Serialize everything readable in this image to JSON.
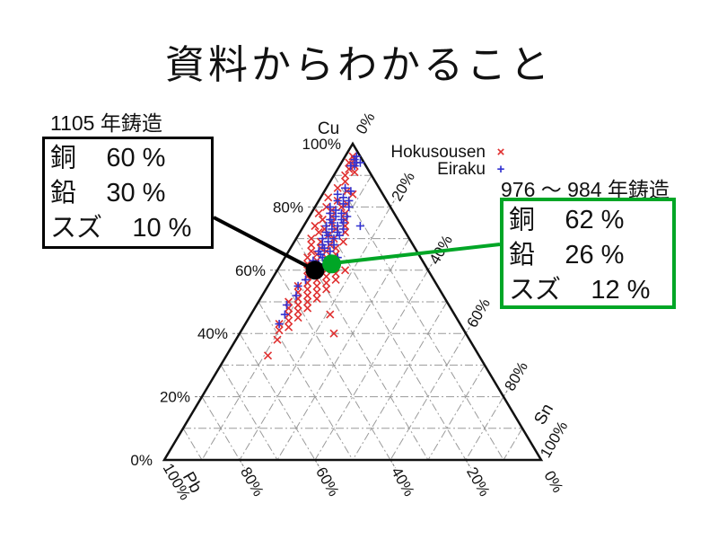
{
  "slide": {
    "title": "資料からわかること",
    "background": "#ffffff"
  },
  "legend": {
    "items": [
      {
        "label": "Hokusousen",
        "marker": "x",
        "color": "#e03030"
      },
      {
        "label": "Eiraku",
        "marker": "+",
        "color": "#3232d0"
      }
    ]
  },
  "chart_data": {
    "type": "scatter",
    "subtype": "ternary",
    "title": "",
    "grid": {
      "interval_percent": 10,
      "style": "dash-dot",
      "color": "#9a9a9a",
      "shown": true
    },
    "axes": {
      "cu": {
        "title": "Cu",
        "side": "left",
        "min": 0,
        "max": 100,
        "tick_values": [
          100,
          80,
          60,
          40,
          20,
          0
        ],
        "tick_suffix": "%"
      },
      "pb": {
        "title": "Pb",
        "side": "bottom",
        "min": 0,
        "max": 100,
        "tick_values": [
          100,
          80,
          60,
          40,
          20,
          0
        ],
        "tick_suffix": "%"
      },
      "sn": {
        "title": "Sn",
        "side": "right",
        "min": 0,
        "max": 100,
        "tick_values": [
          0,
          20,
          40,
          60,
          80,
          100
        ],
        "tick_suffix": "%"
      }
    },
    "series": [
      {
        "name": "Hokusousen",
        "marker": "x",
        "color": "#e03030",
        "points_format": [
          "cu",
          "pb",
          "sn"
        ],
        "points": [
          [
            96,
            2,
            2
          ],
          [
            95,
            2,
            3
          ],
          [
            94,
            4,
            2
          ],
          [
            93,
            3,
            4
          ],
          [
            92,
            5,
            3
          ],
          [
            91,
            4,
            5
          ],
          [
            90,
            7,
            3
          ],
          [
            88,
            8,
            4
          ],
          [
            86,
            11,
            3
          ],
          [
            85,
            9,
            6
          ],
          [
            84,
            8,
            8
          ],
          [
            83,
            15,
            2
          ],
          [
            82,
            13,
            5
          ],
          [
            81,
            11,
            8
          ],
          [
            80,
            17,
            3
          ],
          [
            80,
            13,
            7
          ],
          [
            79,
            16,
            5
          ],
          [
            78,
            20,
            2
          ],
          [
            78,
            13,
            9
          ],
          [
            77,
            17,
            6
          ],
          [
            76,
            20,
            4
          ],
          [
            76,
            14,
            10
          ],
          [
            75,
            18,
            7
          ],
          [
            74,
            23,
            3
          ],
          [
            74,
            15,
            11
          ],
          [
            73,
            21,
            6
          ],
          [
            73,
            18,
            9
          ],
          [
            72,
            23,
            5
          ],
          [
            72,
            16,
            12
          ],
          [
            71,
            21,
            8
          ],
          [
            70,
            26,
            4
          ],
          [
            70,
            20,
            10
          ],
          [
            69,
            24,
            7
          ],
          [
            69,
            18,
            13
          ],
          [
            68,
            27,
            5
          ],
          [
            68,
            22,
            10
          ],
          [
            67,
            25,
            8
          ],
          [
            67,
            21,
            12
          ],
          [
            66,
            28,
            6
          ],
          [
            66,
            24,
            10
          ],
          [
            65,
            27,
            8
          ],
          [
            65,
            22,
            13
          ],
          [
            64,
            30,
            6
          ],
          [
            64,
            25,
            11
          ],
          [
            63,
            28,
            9
          ],
          [
            63,
            23,
            14
          ],
          [
            62,
            31,
            7
          ],
          [
            62,
            26,
            12
          ],
          [
            61,
            29,
            10
          ],
          [
            61,
            24,
            15
          ],
          [
            60,
            32,
            8
          ],
          [
            60,
            27,
            13
          ],
          [
            60,
            22,
            18
          ],
          [
            59,
            30,
            11
          ],
          [
            59,
            25,
            16
          ],
          [
            58,
            33,
            9
          ],
          [
            58,
            28,
            14
          ],
          [
            57,
            31,
            12
          ],
          [
            57,
            26,
            17
          ],
          [
            56,
            34,
            10
          ],
          [
            56,
            29,
            15
          ],
          [
            55,
            37,
            8
          ],
          [
            55,
            32,
            13
          ],
          [
            54,
            35,
            11
          ],
          [
            54,
            30,
            16
          ],
          [
            53,
            38,
            9
          ],
          [
            53,
            33,
            14
          ],
          [
            52,
            36,
            12
          ],
          [
            51,
            39,
            10
          ],
          [
            51,
            34,
            15
          ],
          [
            50,
            42,
            8
          ],
          [
            50,
            37,
            13
          ],
          [
            49,
            40,
            11
          ],
          [
            48,
            43,
            9
          ],
          [
            48,
            38,
            14
          ],
          [
            47,
            41,
            12
          ],
          [
            46,
            44,
            10
          ],
          [
            46,
            33,
            21
          ],
          [
            45,
            42,
            13
          ],
          [
            44,
            45,
            11
          ],
          [
            43,
            48,
            9
          ],
          [
            42,
            46,
            12
          ],
          [
            41,
            49,
            10
          ],
          [
            40,
            35,
            25
          ],
          [
            38,
            51,
            11
          ],
          [
            33,
            56,
            11
          ]
        ]
      },
      {
        "name": "Eiraku",
        "marker": "+",
        "color": "#3232d0",
        "points_format": [
          "cu",
          "pb",
          "sn"
        ],
        "points": [
          [
            95,
            2,
            3
          ],
          [
            94,
            2,
            4
          ],
          [
            96,
            1,
            3
          ],
          [
            93,
            4,
            3
          ],
          [
            94,
            1,
            5
          ],
          [
            93,
            3,
            4
          ],
          [
            86,
            9,
            5
          ],
          [
            85,
            8,
            7
          ],
          [
            84,
            12,
            4
          ],
          [
            83,
            11,
            6
          ],
          [
            82,
            10,
            8
          ],
          [
            82,
            13,
            5
          ],
          [
            81,
            12,
            7
          ],
          [
            80,
            16,
            4
          ],
          [
            80,
            11,
            9
          ],
          [
            79,
            15,
            6
          ],
          [
            78,
            14,
            8
          ],
          [
            78,
            17,
            5
          ],
          [
            77,
            16,
            7
          ],
          [
            77,
            13,
            10
          ],
          [
            76,
            18,
            6
          ],
          [
            76,
            15,
            9
          ],
          [
            75,
            18,
            7
          ],
          [
            75,
            15,
            10
          ],
          [
            74,
            20,
            6
          ],
          [
            74,
            17,
            9
          ],
          [
            73,
            19,
            8
          ],
          [
            73,
            16,
            11
          ],
          [
            72,
            21,
            7
          ],
          [
            72,
            18,
            10
          ],
          [
            71,
            21,
            8
          ],
          [
            71,
            18,
            11
          ],
          [
            70,
            23,
            7
          ],
          [
            70,
            20,
            10
          ],
          [
            69,
            22,
            9
          ],
          [
            68,
            24,
            8
          ],
          [
            68,
            21,
            11
          ],
          [
            67,
            24,
            9
          ],
          [
            66,
            26,
            8
          ],
          [
            66,
            23,
            11
          ],
          [
            65,
            26,
            9
          ],
          [
            64,
            26,
            10
          ],
          [
            63,
            29,
            8
          ],
          [
            62,
            28,
            10
          ],
          [
            61,
            30,
            9
          ],
          [
            60,
            29,
            11
          ],
          [
            59,
            31,
            10
          ],
          [
            57,
            34,
            9
          ],
          [
            55,
            37,
            8
          ],
          [
            52,
            39,
            9
          ],
          [
            49,
            43,
            8
          ],
          [
            46,
            45,
            9
          ],
          [
            43,
            48,
            9
          ],
          [
            74,
            11,
            15
          ],
          [
            64,
            22,
            14
          ]
        ]
      }
    ],
    "annotations": [
      {
        "label": "1105 年鋳造",
        "color": "#000000",
        "composition": {
          "cu": 60,
          "pb": 30,
          "sn": 10
        },
        "rows": [
          {
            "element": "銅",
            "value": "60 %"
          },
          {
            "element": "鉛",
            "value": "30 %"
          },
          {
            "element": "スズ",
            "value": "10 %"
          }
        ]
      },
      {
        "label": "976 ～ 984 年鋳造",
        "color": "#00a626",
        "composition": {
          "cu": 62,
          "pb": 26,
          "sn": 12
        },
        "rows": [
          {
            "element": "銅",
            "value": "62 %"
          },
          {
            "element": "鉛",
            "value": "26 %"
          },
          {
            "element": "スズ",
            "value": "12 %"
          }
        ]
      }
    ]
  }
}
